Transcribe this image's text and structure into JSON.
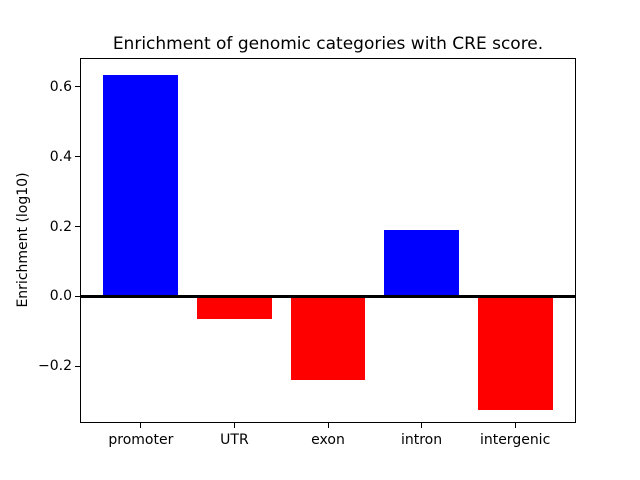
{
  "chart_data": {
    "type": "bar",
    "title": "Enrichment of genomic categories with CRE score.",
    "xlabel": "",
    "ylabel": "Enrichment (log10)",
    "categories": [
      "promoter",
      "UTR",
      "exon",
      "intron",
      "intergenic"
    ],
    "values": [
      0.635,
      -0.065,
      -0.24,
      0.19,
      -0.325
    ],
    "bar_colors": [
      "#0000ff",
      "#ff0000",
      "#ff0000",
      "#0000ff",
      "#ff0000"
    ],
    "positive_color": "#0000ff",
    "negative_color": "#ff0000",
    "yticks": [
      -0.2,
      0.0,
      0.2,
      0.4,
      0.6
    ],
    "ytick_labels": [
      "−0.2",
      "0.0",
      "0.2",
      "0.4",
      "0.6"
    ],
    "ylim": [
      -0.36,
      0.68
    ],
    "bar_width_fraction": 0.8,
    "axis_color": "#000000",
    "background_color": "#ffffff",
    "zero_line": true,
    "grid": false,
    "legend": "none"
  }
}
